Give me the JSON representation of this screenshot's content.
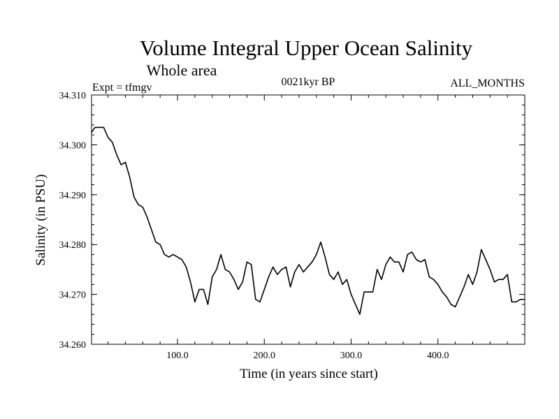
{
  "chart_data": {
    "type": "line",
    "title": "Volume Integral Upper Ocean Salinity",
    "subtitle": "Whole area",
    "expt_label": "Expt = tfmgv",
    "period_label": "0021kyr BP",
    "months_label": "ALL_MONTHS",
    "xlabel": "Time (in years since start)",
    "ylabel": "Salinity (in PSU)",
    "xlim": [
      1,
      500
    ],
    "ylim": [
      34.26,
      34.31
    ],
    "x_ticks": [
      100,
      200,
      300,
      400
    ],
    "x_tick_labels": [
      "100.0",
      "200.0",
      "300.0",
      "400.0"
    ],
    "y_ticks": [
      34.26,
      34.27,
      34.28,
      34.29,
      34.3,
      34.31
    ],
    "y_tick_labels": [
      "34.260",
      "34.270",
      "34.280",
      "34.290",
      "34.300",
      "34.310"
    ],
    "grid": false,
    "line_color": "#000000",
    "series": [
      {
        "x": [
          1,
          5,
          10,
          15,
          20,
          25,
          30,
          35,
          40,
          45,
          50,
          55,
          60,
          65,
          70,
          75,
          80,
          85,
          90,
          95,
          100,
          105,
          110,
          115,
          120,
          125,
          130,
          135,
          140,
          145,
          150,
          155,
          160,
          165,
          170,
          175,
          180,
          185,
          190,
          195,
          200,
          205,
          210,
          215,
          220,
          225,
          230,
          235,
          240,
          245,
          250,
          255,
          260,
          265,
          270,
          275,
          280,
          285,
          290,
          295,
          300,
          305,
          310,
          315,
          320,
          325,
          330,
          335,
          340,
          345,
          350,
          355,
          360,
          365,
          370,
          375,
          380,
          385,
          390,
          395,
          400,
          405,
          410,
          415,
          420,
          425,
          430,
          435,
          440,
          445,
          450,
          455,
          460,
          465,
          470,
          475,
          480,
          485,
          490,
          495,
          500
        ],
        "values": [
          34.3025,
          34.3035,
          34.3035,
          34.3035,
          34.3015,
          34.3005,
          34.298,
          34.296,
          34.2965,
          34.2935,
          34.2895,
          34.288,
          34.2875,
          34.2855,
          34.283,
          34.2805,
          34.28,
          34.278,
          34.2775,
          34.278,
          34.2775,
          34.277,
          34.2755,
          34.2725,
          34.2685,
          34.271,
          34.271,
          34.268,
          34.2735,
          34.275,
          34.278,
          34.275,
          34.2745,
          34.273,
          34.271,
          34.2725,
          34.2765,
          34.276,
          34.269,
          34.2685,
          34.271,
          34.2735,
          34.2755,
          34.274,
          34.275,
          34.2755,
          34.2715,
          34.2745,
          34.276,
          34.2745,
          34.2755,
          34.2765,
          34.278,
          34.2805,
          34.2775,
          34.274,
          34.273,
          34.2745,
          34.272,
          34.273,
          34.27,
          34.268,
          34.266,
          34.2705,
          34.2705,
          34.2705,
          34.275,
          34.273,
          34.276,
          34.2775,
          34.2765,
          34.2765,
          34.2745,
          34.278,
          34.2785,
          34.277,
          34.2765,
          34.277,
          34.2735,
          34.273,
          34.272,
          34.2705,
          34.2695,
          34.268,
          34.2675,
          34.2695,
          34.2715,
          34.274,
          34.272,
          34.2745,
          34.279,
          34.277,
          34.275,
          34.2725,
          34.273,
          34.273,
          34.274,
          34.2685,
          34.2685,
          34.269,
          34.269
        ]
      }
    ]
  }
}
